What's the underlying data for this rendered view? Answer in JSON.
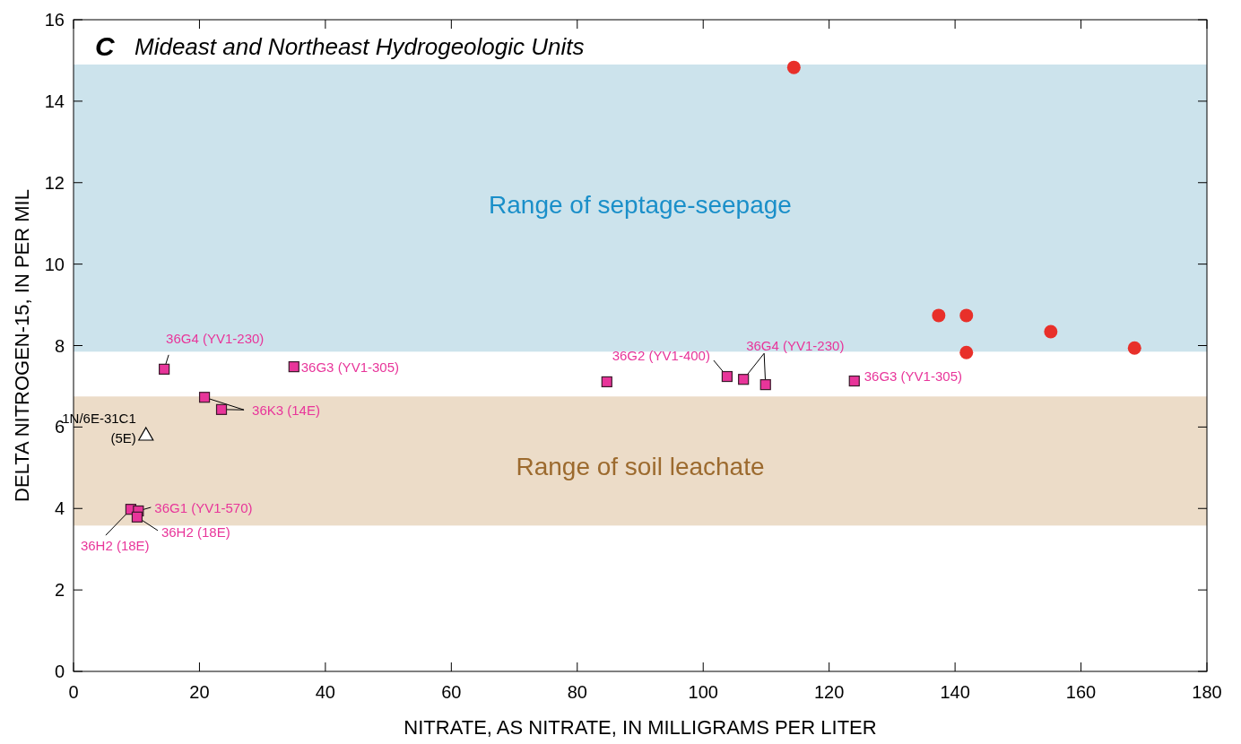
{
  "chart_data": {
    "type": "scatter",
    "title": "Mideast and Northeast Hydrogeologic Units",
    "xlabel": "NITRATE, AS NITRATE, IN MILLIGRAMS PER LITER",
    "ylabel": "DELTA NITROGEN-15, IN PER MIL",
    "xlim": [
      0,
      180
    ],
    "xticks": [
      0,
      20,
      40,
      60,
      80,
      100,
      120,
      140,
      160,
      180
    ],
    "ylim": [
      0,
      16
    ],
    "yticks": [
      0,
      2,
      4,
      6,
      8,
      10,
      12,
      14,
      16
    ],
    "grid": false,
    "bands": [
      {
        "axis": "y",
        "from": 7.85,
        "to": 14.9,
        "label": "Range of septage-seepage",
        "color": "#cce3ec"
      },
      {
        "axis": "y",
        "from": 3.58,
        "to": 6.75,
        "label": "Range of soil leachate",
        "color": "#ecdcc8"
      }
    ],
    "series": [
      {
        "color": "#e8302a",
        "marker": "circle",
        "x": [
          114.4,
          137.4,
          141.8,
          141.8,
          155.2,
          168.5
        ],
        "values": [
          14.83,
          8.74,
          8.74,
          7.83,
          8.34,
          7.94
        ]
      },
      {
        "color": "#e8359a",
        "marker": "square",
        "x": [
          14.4,
          35.0,
          20.8,
          23.5,
          9.1,
          10.3,
          10.1,
          84.7,
          103.8,
          106.4,
          109.9,
          124.0
        ],
        "values": [
          7.42,
          7.48,
          6.73,
          6.43,
          3.98,
          3.94,
          3.79,
          7.11,
          7.24,
          7.17,
          7.04,
          7.13
        ]
      },
      {
        "color": "#ffffff",
        "marker": "triangle",
        "x": [
          11.5
        ],
        "values": [
          5.81
        ]
      }
    ],
    "annotations": [
      "C",
      {
        "text": "36G4 (YV1-230)",
        "x": 14.4,
        "y": 7.42
      },
      {
        "text": "36G3 (YV1-305)",
        "x": 35.0,
        "y": 7.48
      },
      {
        "text": "36K3 (14E)",
        "x": 20.8,
        "y": 6.73
      },
      {
        "text": "1N/6E-31C1\n(5E)",
        "x": 11.5,
        "y": 5.81
      },
      {
        "text": "36G1 (YV1-570)",
        "x": 10.3,
        "y": 3.94
      },
      {
        "text": "36H2 (18E)",
        "x": 10.1,
        "y": 3.79
      },
      {
        "text": "36H2 (18E)",
        "x": 9.1,
        "y": 3.98
      },
      {
        "text": "36G2 (YV1-400)",
        "x": 103.8,
        "y": 7.24
      },
      {
        "text": "36G4 (YV1-230)",
        "x": 106.4,
        "y": 7.17
      },
      {
        "text": "36G3 (YV1-305)",
        "x": 124.0,
        "y": 7.13
      }
    ]
  }
}
